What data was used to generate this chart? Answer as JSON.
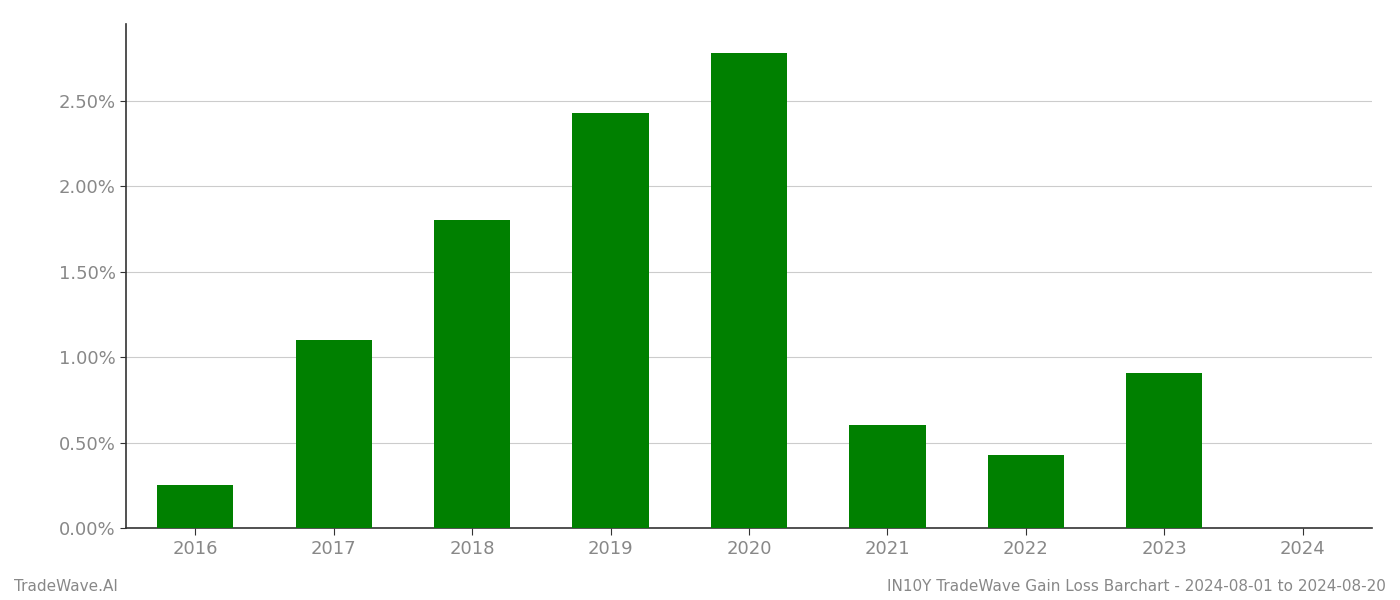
{
  "years": [
    2016,
    2017,
    2018,
    2019,
    2020,
    2021,
    2022,
    2023,
    2024
  ],
  "values": [
    0.0025,
    0.011,
    0.018,
    0.0243,
    0.0278,
    0.006,
    0.0043,
    0.0091,
    0.0
  ],
  "bar_color": "#008000",
  "background_color": "#ffffff",
  "grid_color": "#cccccc",
  "axis_color": "#333333",
  "tick_color": "#888888",
  "footer_left": "TradeWave.AI",
  "footer_right": "IN10Y TradeWave Gain Loss Barchart - 2024-08-01 to 2024-08-20",
  "ylim": [
    0,
    0.0295
  ],
  "yticks": [
    0.0,
    0.005,
    0.01,
    0.015,
    0.02,
    0.025
  ],
  "ytick_labels": [
    "0.00%",
    "0.50%",
    "1.00%",
    "1.50%",
    "2.00%",
    "2.50%"
  ],
  "bar_width": 0.55,
  "tick_fontsize": 13,
  "footer_fontsize": 11
}
